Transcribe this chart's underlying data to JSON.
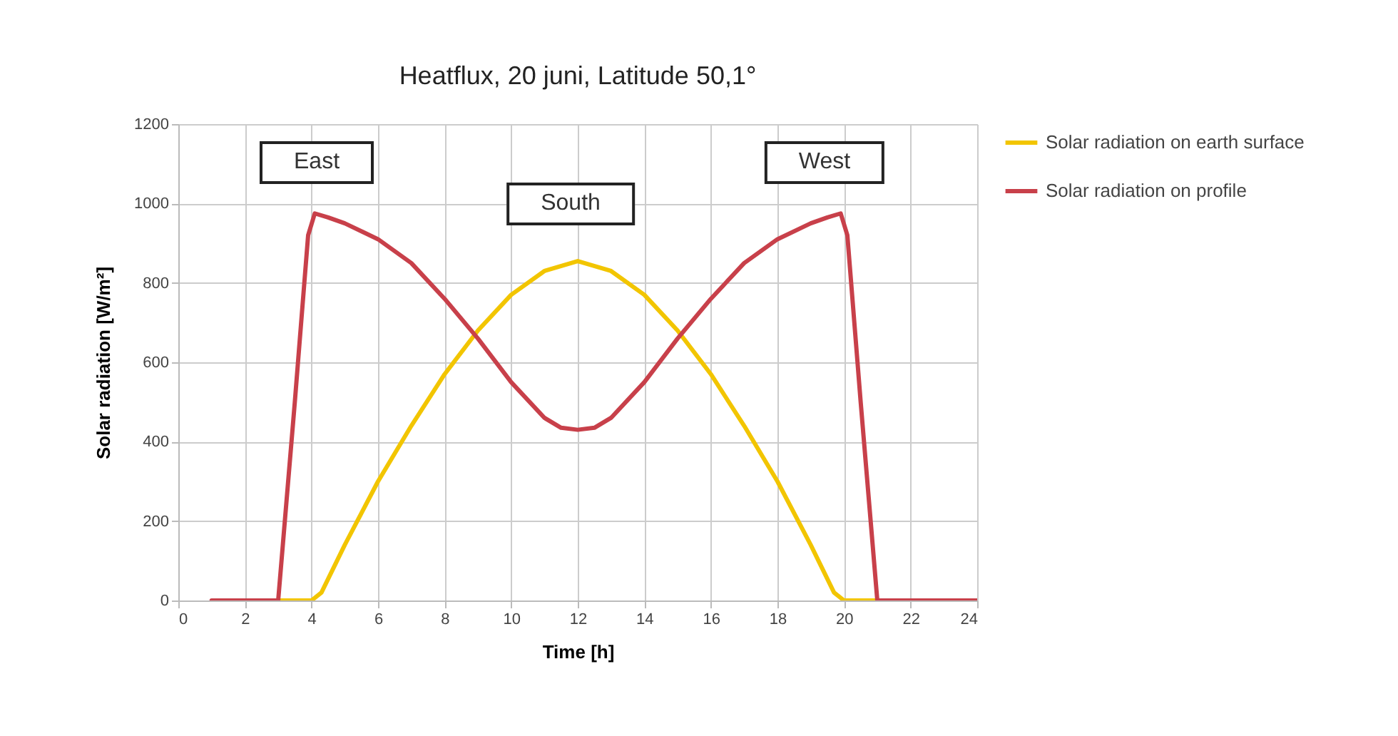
{
  "chart_data": {
    "type": "line",
    "title": "Heatflux, 20 juni, Latitude 50,1°",
    "xlabel": "Time [h]",
    "ylabel": "Solar radiation [W/m²]",
    "xlim": [
      0,
      24
    ],
    "xticks": [
      0,
      2,
      4,
      6,
      8,
      10,
      12,
      14,
      16,
      18,
      20,
      22,
      24
    ],
    "ylim": [
      0,
      1200
    ],
    "yticks": [
      0,
      200,
      400,
      600,
      800,
      1000,
      1200
    ],
    "grid": true,
    "legend": "right",
    "line_style": "solid",
    "marker": "none",
    "annotations": [
      "East",
      "South",
      "West"
    ],
    "series": [
      {
        "name": "Solar radiation on earth surface",
        "color": "#f2c500",
        "x": [
          3,
          4,
          4.3,
          5,
          6,
          7,
          8,
          9,
          10,
          11,
          12,
          13,
          14,
          15,
          16,
          17,
          18,
          19,
          19.7,
          20,
          21
        ],
        "values": [
          0,
          0,
          20,
          140,
          300,
          440,
          570,
          680,
          770,
          830,
          855,
          830,
          770,
          680,
          570,
          440,
          300,
          140,
          20,
          0,
          0
        ]
      },
      {
        "name": "Solar radiation on profile",
        "color": "#c8404a",
        "x": [
          1,
          2,
          3,
          3.5,
          3.9,
          4.1,
          4.5,
          5,
          6,
          7,
          8,
          9,
          10,
          11,
          11.5,
          12,
          12.5,
          13,
          14,
          15,
          16,
          17,
          18,
          19,
          19.5,
          19.9,
          20.1,
          20.5,
          21,
          22,
          23,
          24
        ],
        "values": [
          0,
          0,
          0,
          500,
          920,
          975,
          965,
          950,
          910,
          850,
          760,
          660,
          550,
          460,
          435,
          430,
          435,
          460,
          550,
          660,
          760,
          850,
          910,
          950,
          965,
          975,
          920,
          500,
          0,
          0,
          0,
          0
        ]
      }
    ]
  }
}
